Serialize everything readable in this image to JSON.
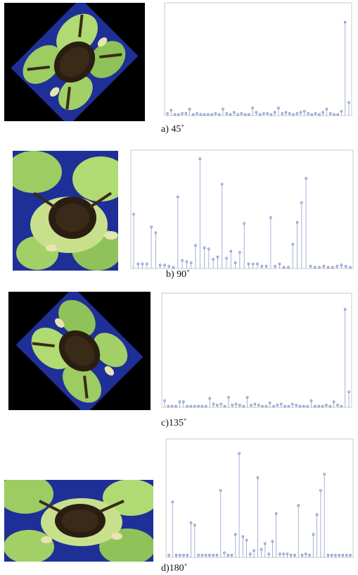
{
  "figure": {
    "panels": [
      {
        "id": "a",
        "caption": "a) 45˚"
      },
      {
        "id": "b",
        "caption": "b) 90˚"
      },
      {
        "id": "c",
        "caption": "c)135˚"
      },
      {
        "id": "d",
        "caption": "d)180˚"
      }
    ]
  },
  "colors": {
    "stem": "#8e9dcf",
    "marker": "#6f82c4",
    "photo_background": "#000000",
    "leaf": "#a8d46a",
    "water": "#2234a0",
    "crab": "#2a1e12"
  },
  "chart_data": [
    {
      "type": "stem",
      "panel": "a",
      "title": "",
      "xlabel": "",
      "ylabel": "",
      "grid": false,
      "x": [
        1,
        2,
        3,
        4,
        5,
        6,
        7,
        8,
        9,
        10,
        11,
        12,
        13,
        14,
        15,
        16,
        17,
        18,
        19,
        20,
        21,
        22,
        23,
        24,
        25,
        26,
        27,
        28,
        29,
        30,
        31,
        32,
        33,
        34,
        35,
        36,
        37,
        38,
        39,
        40,
        41,
        42,
        43,
        44,
        45,
        46,
        47,
        48,
        49,
        50
      ],
      "values": [
        0.02,
        0.05,
        0.01,
        0.01,
        0.02,
        0.02,
        0.06,
        0.01,
        0.02,
        0.01,
        0.01,
        0.01,
        0.01,
        0.02,
        0.01,
        0.06,
        0.02,
        0.01,
        0.03,
        0.01,
        0.02,
        0.01,
        0.01,
        0.07,
        0.03,
        0.01,
        0.02,
        0.02,
        0.01,
        0.03,
        0.07,
        0.02,
        0.03,
        0.02,
        0.01,
        0.02,
        0.03,
        0.04,
        0.02,
        0.01,
        0.02,
        0.01,
        0.03,
        0.06,
        0.02,
        0.01,
        0.01,
        0.04,
        0.85,
        0.12
      ],
      "ylim": [
        0,
        1
      ]
    },
    {
      "type": "stem",
      "panel": "b",
      "title": "",
      "xlabel": "",
      "ylabel": "",
      "grid": false,
      "x": [
        1,
        2,
        3,
        4,
        5,
        6,
        7,
        8,
        9,
        10,
        11,
        12,
        13,
        14,
        15,
        16,
        17,
        18,
        19,
        20,
        21,
        22,
        23,
        24,
        25,
        26,
        27,
        28,
        29,
        30,
        31,
        32,
        33,
        34,
        35,
        36,
        37,
        38,
        39,
        40,
        41,
        42,
        43,
        44,
        45,
        46,
        47,
        48,
        49,
        50
      ],
      "values": [
        0.47,
        0.04,
        0.04,
        0.04,
        0.36,
        0.31,
        0.03,
        0.03,
        0.02,
        0.01,
        0.62,
        0.07,
        0.06,
        0.05,
        0.2,
        0.95,
        0.18,
        0.17,
        0.08,
        0.1,
        0.73,
        0.09,
        0.15,
        0.05,
        0.14,
        0.39,
        0.04,
        0.04,
        0.04,
        0.02,
        0.02,
        0.44,
        0.02,
        0.04,
        0.01,
        0.01,
        0.21,
        0.4,
        0.57,
        0.78,
        0.02,
        0.01,
        0.01,
        0.02,
        0.01,
        0.01,
        0.02,
        0.03,
        0.02,
        0.01
      ],
      "ylim": [
        0,
        1
      ]
    },
    {
      "type": "stem",
      "panel": "c",
      "title": "",
      "xlabel": "",
      "ylabel": "",
      "grid": false,
      "x": [
        1,
        2,
        3,
        4,
        5,
        6,
        7,
        8,
        9,
        10,
        11,
        12,
        13,
        14,
        15,
        16,
        17,
        18,
        19,
        20,
        21,
        22,
        23,
        24,
        25,
        26,
        27,
        28,
        29,
        30,
        31,
        32,
        33,
        34,
        35,
        36,
        37,
        38,
        39,
        40,
        41,
        42,
        43,
        44,
        45,
        46,
        47,
        48,
        49,
        50
      ],
      "values": [
        0.06,
        0.01,
        0.01,
        0.01,
        0.05,
        0.05,
        0.01,
        0.01,
        0.01,
        0.01,
        0.01,
        0.01,
        0.08,
        0.03,
        0.02,
        0.03,
        0.01,
        0.09,
        0.02,
        0.03,
        0.02,
        0.01,
        0.09,
        0.02,
        0.03,
        0.02,
        0.01,
        0.01,
        0.04,
        0.01,
        0.02,
        0.03,
        0.01,
        0.01,
        0.03,
        0.02,
        0.01,
        0.01,
        0.01,
        0.06,
        0.01,
        0.01,
        0.01,
        0.02,
        0.01,
        0.05,
        0.02,
        0.01,
        0.88,
        0.14
      ],
      "ylim": [
        0,
        1
      ]
    },
    {
      "type": "stem",
      "panel": "d",
      "title": "",
      "xlabel": "",
      "ylabel": "",
      "grid": false,
      "x": [
        1,
        2,
        3,
        4,
        5,
        6,
        7,
        8,
        9,
        10,
        11,
        12,
        13,
        14,
        15,
        16,
        17,
        18,
        19,
        20,
        21,
        22,
        23,
        24,
        25,
        26,
        27,
        28,
        29,
        30,
        31,
        32,
        33,
        34,
        35,
        36,
        37,
        38,
        39,
        40,
        41,
        42,
        43,
        44,
        45,
        46,
        47,
        48,
        49,
        50
      ],
      "values": [
        0.02,
        0.48,
        0.02,
        0.02,
        0.02,
        0.02,
        0.3,
        0.28,
        0.02,
        0.02,
        0.02,
        0.02,
        0.02,
        0.02,
        0.58,
        0.04,
        0.02,
        0.02,
        0.2,
        0.9,
        0.18,
        0.15,
        0.03,
        0.06,
        0.69,
        0.07,
        0.12,
        0.03,
        0.14,
        0.38,
        0.03,
        0.03,
        0.03,
        0.02,
        0.02,
        0.45,
        0.02,
        0.03,
        0.02,
        0.2,
        0.37,
        0.58,
        0.72,
        0.02,
        0.02,
        0.02,
        0.02,
        0.02,
        0.02,
        0.02
      ],
      "ylim": [
        0,
        1
      ]
    }
  ]
}
